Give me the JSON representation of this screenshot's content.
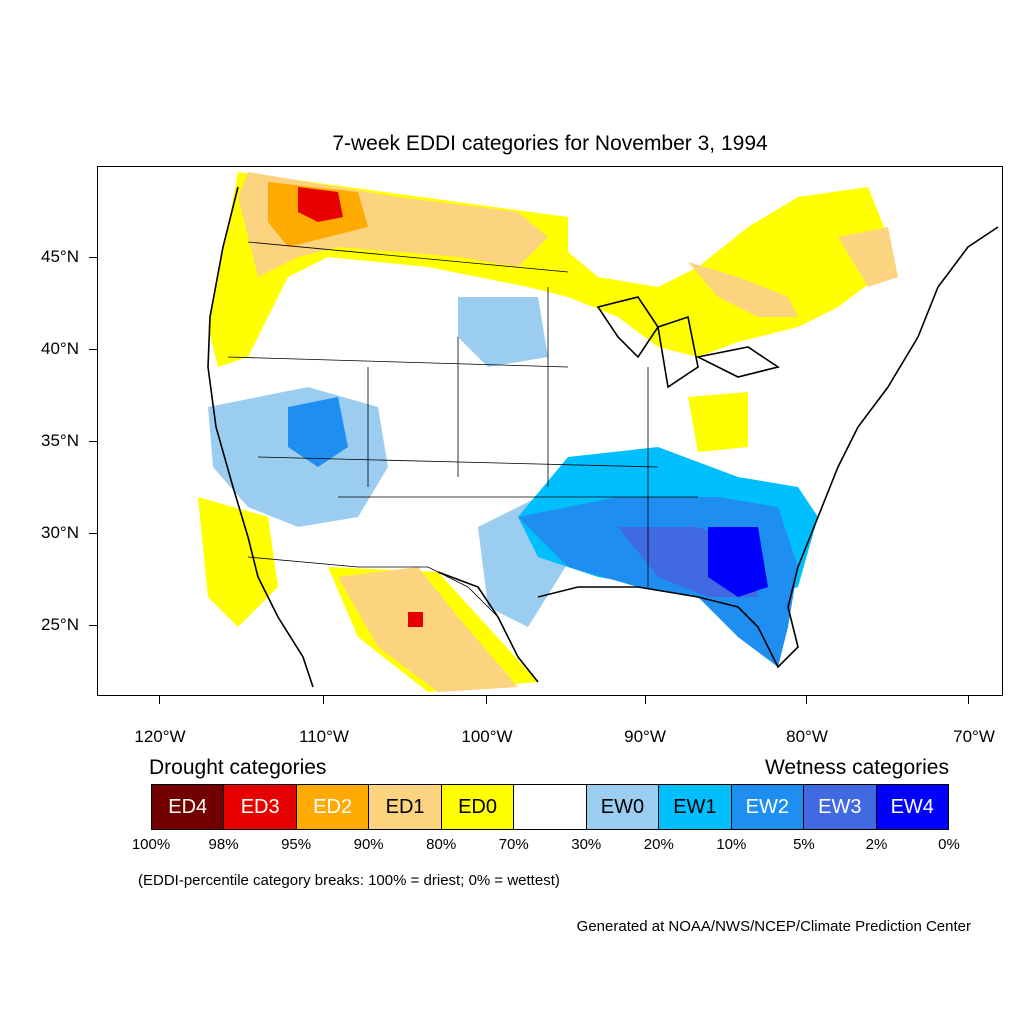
{
  "title": "7-week EDDI categories for November 3, 1994",
  "lat_labels": [
    "45°N",
    "40°N",
    "35°N",
    "30°N",
    "25°N"
  ],
  "lon_labels": [
    "120°W",
    "110°W",
    "100°W",
    "90°W",
    "80°W",
    "70°W"
  ],
  "legend": {
    "drought_title": "Drought categories",
    "wetness_title": "Wetness categories",
    "categories": [
      {
        "label": "ED4",
        "color": "#730000",
        "text_color": "#ffffff"
      },
      {
        "label": "ED3",
        "color": "#e60000",
        "text_color": "#ffffff"
      },
      {
        "label": "ED2",
        "color": "#ffaa00",
        "text_color": "#ffffff"
      },
      {
        "label": "ED1",
        "color": "#fcd37f",
        "text_color": "#000000"
      },
      {
        "label": "ED0",
        "color": "#ffff00",
        "text_color": "#000000"
      },
      {
        "label": "",
        "color": "#ffffff",
        "text_color": "#000000"
      },
      {
        "label": "EW0",
        "color": "#9bcdf0",
        "text_color": "#000000"
      },
      {
        "label": "EW1",
        "color": "#00bfff",
        "text_color": "#000000"
      },
      {
        "label": "EW2",
        "color": "#1e8ff0",
        "text_color": "#ffffff"
      },
      {
        "label": "EW3",
        "color": "#4169e1",
        "text_color": "#ffffff"
      },
      {
        "label": "EW4",
        "color": "#0000ff",
        "text_color": "#ffffff"
      }
    ],
    "percent_breaks": [
      "100%",
      "98%",
      "95%",
      "90%",
      "80%",
      "70%",
      "30%",
      "20%",
      "10%",
      "5%",
      "2%",
      "0%"
    ],
    "note": "(EDDI-percentile category breaks: 100% = driest; 0% = wettest)"
  },
  "credit": "Generated at NOAA/NWS/NCEP/Climate Prediction Center"
}
